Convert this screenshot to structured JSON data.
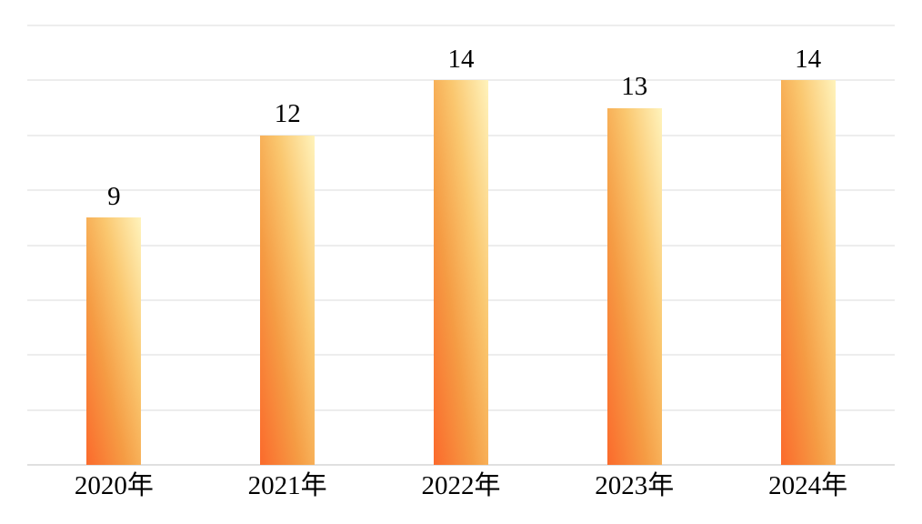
{
  "chart_data": {
    "type": "bar",
    "title": "",
    "xlabel": "",
    "ylabel": "",
    "categories": [
      "2020年",
      "2021年",
      "2022年",
      "2023年",
      "2024年"
    ],
    "values": [
      9,
      12,
      14,
      13,
      14
    ],
    "value_labels": [
      "9",
      "12",
      "14",
      "13",
      "14"
    ],
    "ylim": [
      0,
      16
    ],
    "grid": true,
    "gridline_step": 2,
    "legend": false,
    "colors": {
      "bar_gradient_light": "#FFF3BC",
      "bar_gradient_mid1": "#FAC76F",
      "bar_gradient_mid2": "#F59C44",
      "bar_gradient_dark": "#FB6A2C",
      "gridline": "#EDEDED",
      "axis_line": "#E0E0E0",
      "label": "#000000",
      "background": "#FFFFFF"
    }
  }
}
